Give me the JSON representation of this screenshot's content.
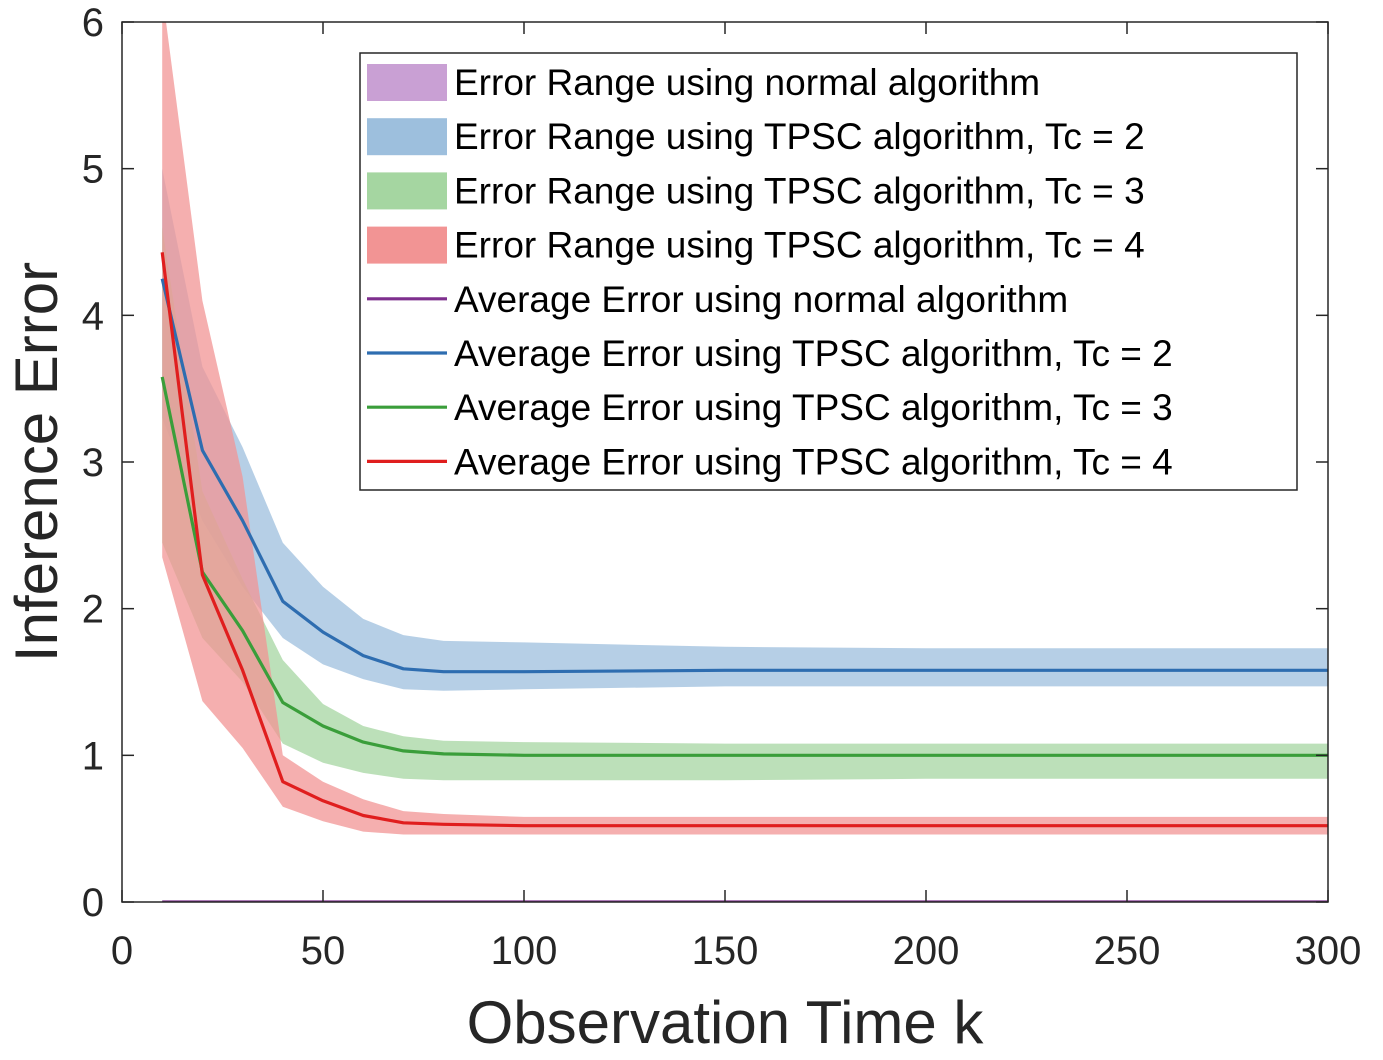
{
  "chart_data": {
    "type": "line",
    "title": "",
    "xlabel": "Observation Time k",
    "ylabel": "Inference Error",
    "xlim": [
      0,
      300
    ],
    "ylim": [
      0,
      6
    ],
    "xticks": [
      0,
      50,
      100,
      150,
      200,
      250,
      300
    ],
    "yticks": [
      0,
      1,
      2,
      3,
      4,
      5,
      6
    ],
    "grid": false,
    "legend_position": "top-right",
    "x": [
      10,
      20,
      30,
      40,
      50,
      60,
      70,
      80,
      100,
      150,
      200,
      250,
      300
    ],
    "bands": [
      {
        "name": "Error Range using normal algorithm",
        "color": "#c9a0d4",
        "lower": [
          0,
          0,
          0,
          0,
          0,
          0,
          0,
          0,
          0,
          0,
          0,
          0,
          0
        ],
        "upper": [
          0,
          0,
          0,
          0,
          0,
          0,
          0,
          0,
          0,
          0,
          0,
          0,
          0
        ]
      },
      {
        "name": "Error Range using TPSC algorithm, Tc = 2",
        "color": "#9dbfdd",
        "lower": [
          3.3,
          2.6,
          2.15,
          1.8,
          1.62,
          1.52,
          1.45,
          1.44,
          1.45,
          1.47,
          1.47,
          1.47,
          1.47
        ],
        "upper": [
          5.0,
          3.65,
          3.1,
          2.45,
          2.15,
          1.93,
          1.82,
          1.78,
          1.77,
          1.74,
          1.73,
          1.73,
          1.73
        ]
      },
      {
        "name": "Error Range using TPSC algorithm, Tc = 3",
        "color": "#a5d6a1",
        "lower": [
          2.45,
          1.8,
          1.5,
          1.08,
          0.95,
          0.88,
          0.84,
          0.83,
          0.83,
          0.83,
          0.84,
          0.84,
          0.84
        ],
        "upper": [
          4.6,
          2.8,
          2.2,
          1.65,
          1.35,
          1.2,
          1.13,
          1.1,
          1.09,
          1.08,
          1.08,
          1.08,
          1.08
        ]
      },
      {
        "name": "Error Range using TPSC algorithm, Tc = 4",
        "color": "#f29494",
        "lower": [
          2.35,
          1.37,
          1.05,
          0.65,
          0.55,
          0.48,
          0.46,
          0.46,
          0.46,
          0.46,
          0.46,
          0.46,
          0.46
        ],
        "upper": [
          6.2,
          4.1,
          2.9,
          1.0,
          0.82,
          0.7,
          0.62,
          0.6,
          0.58,
          0.58,
          0.58,
          0.58,
          0.58
        ]
      }
    ],
    "series": [
      {
        "name": "Average Error using normal algorithm",
        "color": "#7e2f8e",
        "values": [
          0,
          0,
          0,
          0,
          0,
          0,
          0,
          0,
          0,
          0,
          0,
          0,
          0
        ]
      },
      {
        "name": "Average Error using TPSC algorithm, Tc = 2",
        "color": "#2e6db0",
        "values": [
          4.25,
          3.08,
          2.6,
          2.05,
          1.84,
          1.68,
          1.59,
          1.57,
          1.57,
          1.58,
          1.58,
          1.58,
          1.58
        ]
      },
      {
        "name": "Average Error using TPSC algorithm, Tc = 3",
        "color": "#3a9e3a",
        "values": [
          3.58,
          2.25,
          1.85,
          1.36,
          1.2,
          1.09,
          1.03,
          1.01,
          1.0,
          1.0,
          1.0,
          1.0,
          1.0
        ]
      },
      {
        "name": "Average Error using TPSC algorithm, Tc = 4",
        "color": "#e01e1e",
        "values": [
          4.43,
          2.23,
          1.58,
          0.82,
          0.69,
          0.59,
          0.54,
          0.53,
          0.52,
          0.52,
          0.52,
          0.52,
          0.52
        ]
      }
    ]
  }
}
